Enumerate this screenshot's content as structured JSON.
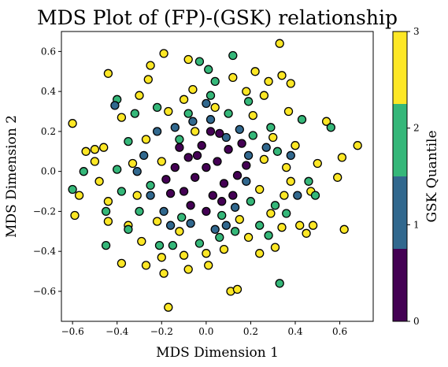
{
  "chart_data": {
    "type": "scatter",
    "title": "MDS Plot of (FP)-(GSK) relationship",
    "xlabel": "MDS Dimension 1",
    "ylabel": "MDS Dimension 2",
    "xlim": [
      -0.65,
      0.75
    ],
    "ylim": [
      -0.75,
      0.7
    ],
    "xticks": [
      -0.6,
      -0.4,
      -0.2,
      0.0,
      0.2,
      0.4,
      0.6
    ],
    "xtick_labels": [
      "−0.6",
      "−0.4",
      "−0.2",
      "0.0",
      "0.2",
      "0.4",
      "0.6"
    ],
    "yticks": [
      -0.6,
      -0.4,
      -0.2,
      0.0,
      0.2,
      0.4,
      0.6
    ],
    "ytick_labels": [
      "−0.6",
      "−0.4",
      "−0.2",
      "0.0",
      "0.2",
      "0.4",
      "0.6"
    ],
    "grid": false,
    "colorbar": {
      "label": "GSK Quantile",
      "ticks": [
        0,
        1,
        2,
        3
      ],
      "tick_labels": [
        "0",
        "1",
        "2",
        "3"
      ],
      "range": [
        0,
        3
      ],
      "bands": [
        "#440154",
        "#31688e",
        "#35b779",
        "#fde725"
      ]
    },
    "series": [
      {
        "values_note_free": true,
        "color": "#fde725",
        "points": [
          [
            0.33,
            0.64
          ],
          [
            0.68,
            0.13
          ],
          [
            0.61,
            0.07
          ],
          [
            0.62,
            -0.29
          ],
          [
            0.54,
            0.25
          ],
          [
            0.59,
            -0.03
          ],
          [
            0.5,
            0.04
          ],
          [
            0.47,
            -0.1
          ],
          [
            0.45,
            -0.31
          ],
          [
            0.48,
            -0.27
          ],
          [
            0.42,
            -0.27
          ],
          [
            0.34,
            -0.28
          ],
          [
            0.34,
            0.48
          ],
          [
            0.38,
            0.44
          ],
          [
            0.28,
            0.45
          ],
          [
            -0.19,
            0.59
          ],
          [
            -0.08,
            0.56
          ],
          [
            -0.25,
            0.53
          ],
          [
            -0.44,
            0.49
          ],
          [
            -0.26,
            0.46
          ],
          [
            -0.06,
            0.41
          ],
          [
            0.22,
            0.5
          ],
          [
            0.12,
            0.47
          ],
          [
            -0.6,
            0.24
          ],
          [
            -0.59,
            -0.22
          ],
          [
            -0.57,
            -0.12
          ],
          [
            -0.54,
            0.1
          ],
          [
            -0.5,
            0.11
          ],
          [
            -0.5,
            0.05
          ],
          [
            -0.44,
            -0.25
          ],
          [
            -0.38,
            -0.46
          ],
          [
            -0.27,
            -0.47
          ],
          [
            -0.19,
            -0.51
          ],
          [
            -0.17,
            -0.68
          ],
          [
            -0.08,
            -0.49
          ],
          [
            0.01,
            -0.47
          ],
          [
            0.11,
            -0.6
          ],
          [
            0.14,
            -0.59
          ],
          [
            0.24,
            -0.41
          ],
          [
            0.31,
            -0.38
          ],
          [
            0.38,
            -0.05
          ],
          [
            0.4,
            0.13
          ],
          [
            0.37,
            0.3
          ],
          [
            0.26,
            0.38
          ],
          [
            0.18,
            0.4
          ],
          [
            0.04,
            0.32
          ],
          [
            -0.1,
            0.36
          ],
          [
            -0.3,
            0.38
          ],
          [
            -0.38,
            0.27
          ],
          [
            -0.46,
            0.12
          ],
          [
            -0.48,
            -0.05
          ],
          [
            -0.44,
            -0.15
          ],
          [
            -0.35,
            -0.27
          ],
          [
            -0.29,
            -0.35
          ],
          [
            -0.2,
            -0.43
          ],
          [
            -0.1,
            -0.42
          ],
          [
            0.0,
            -0.41
          ],
          [
            0.08,
            -0.39
          ],
          [
            0.19,
            -0.33
          ],
          [
            0.29,
            -0.21
          ],
          [
            0.35,
            -0.12
          ],
          [
            0.36,
            0.02
          ],
          [
            0.3,
            0.17
          ],
          [
            0.21,
            0.28
          ],
          [
            -0.17,
            0.3
          ],
          [
            -0.27,
            0.16
          ],
          [
            -0.33,
            0.04
          ],
          [
            -0.31,
            -0.12
          ],
          [
            -0.22,
            -0.25
          ],
          [
            -0.12,
            -0.3
          ],
          [
            0.15,
            -0.24
          ],
          [
            0.24,
            -0.09
          ],
          [
            0.26,
            0.06
          ],
          [
            -0.05,
            0.2
          ],
          [
            -0.2,
            0.05
          ]
        ]
      },
      {
        "color": "#35b779",
        "points": [
          [
            0.56,
            0.22
          ],
          [
            0.43,
            0.26
          ],
          [
            0.49,
            -0.12
          ],
          [
            0.46,
            -0.05
          ],
          [
            0.36,
            -0.21
          ],
          [
            0.28,
            -0.32
          ],
          [
            0.33,
            -0.56
          ],
          [
            0.12,
            0.58
          ],
          [
            0.01,
            0.51
          ],
          [
            -0.03,
            0.55
          ],
          [
            0.19,
            0.35
          ],
          [
            -0.4,
            0.36
          ],
          [
            -0.45,
            -0.37
          ],
          [
            -0.45,
            -0.2
          ],
          [
            -0.55,
            0.0
          ],
          [
            -0.6,
            -0.09
          ],
          [
            -0.35,
            -0.29
          ],
          [
            -0.21,
            -0.37
          ],
          [
            -0.15,
            -0.37
          ],
          [
            -0.03,
            -0.36
          ],
          [
            0.06,
            -0.33
          ],
          [
            0.13,
            -0.3
          ],
          [
            0.24,
            -0.27
          ],
          [
            0.31,
            -0.17
          ],
          [
            0.32,
            0.1
          ],
          [
            0.29,
            0.22
          ],
          [
            0.1,
            0.29
          ],
          [
            0.02,
            0.38
          ],
          [
            -0.08,
            0.29
          ],
          [
            -0.22,
            0.32
          ],
          [
            -0.32,
            0.29
          ],
          [
            -0.35,
            0.15
          ],
          [
            -0.4,
            0.01
          ],
          [
            -0.38,
            -0.1
          ],
          [
            -0.3,
            -0.2
          ],
          [
            -0.11,
            -0.23
          ],
          [
            0.07,
            -0.22
          ],
          [
            0.2,
            -0.15
          ],
          [
            0.21,
            0.18
          ],
          [
            -0.12,
            0.16
          ],
          [
            -0.25,
            -0.07
          ],
          [
            0.04,
            0.45
          ]
        ]
      },
      {
        "color": "#31688e",
        "points": [
          [
            0.15,
            0.21
          ],
          [
            0.09,
            0.17
          ],
          [
            0.02,
            0.26
          ],
          [
            -0.06,
            0.25
          ],
          [
            -0.14,
            0.22
          ],
          [
            -0.22,
            0.2
          ],
          [
            -0.28,
            0.08
          ],
          [
            -0.25,
            -0.12
          ],
          [
            -0.19,
            -0.2
          ],
          [
            -0.07,
            -0.26
          ],
          [
            0.04,
            -0.29
          ],
          [
            0.13,
            -0.18
          ],
          [
            0.18,
            -0.05
          ],
          [
            0.19,
            0.08
          ],
          [
            -0.41,
            0.33
          ],
          [
            0.41,
            -0.12
          ],
          [
            0.38,
            0.08
          ],
          [
            -0.16,
            -0.27
          ],
          [
            0.09,
            -0.27
          ],
          [
            0.27,
            0.12
          ],
          [
            -0.31,
            0.0
          ],
          [
            0.0,
            0.34
          ]
        ]
      },
      {
        "color": "#440154",
        "points": [
          [
            0.0,
            0.02
          ],
          [
            0.05,
            0.05
          ],
          [
            -0.05,
            -0.03
          ],
          [
            0.08,
            -0.06
          ],
          [
            -0.08,
            0.07
          ],
          [
            0.1,
            0.11
          ],
          [
            -0.1,
            -0.1
          ],
          [
            0.03,
            -0.12
          ],
          [
            -0.02,
            0.13
          ],
          [
            0.14,
            -0.02
          ],
          [
            -0.14,
            0.02
          ],
          [
            0.06,
            0.19
          ],
          [
            -0.07,
            -0.17
          ],
          [
            0.12,
            -0.12
          ],
          [
            -0.12,
            0.12
          ],
          [
            0.18,
            0.03
          ],
          [
            -0.18,
            -0.04
          ],
          [
            0.0,
            -0.2
          ],
          [
            0.02,
            0.2
          ],
          [
            -0.04,
            0.08
          ],
          [
            0.07,
            -0.15
          ],
          [
            -0.16,
            -0.11
          ],
          [
            0.16,
            0.14
          ]
        ]
      }
    ]
  }
}
